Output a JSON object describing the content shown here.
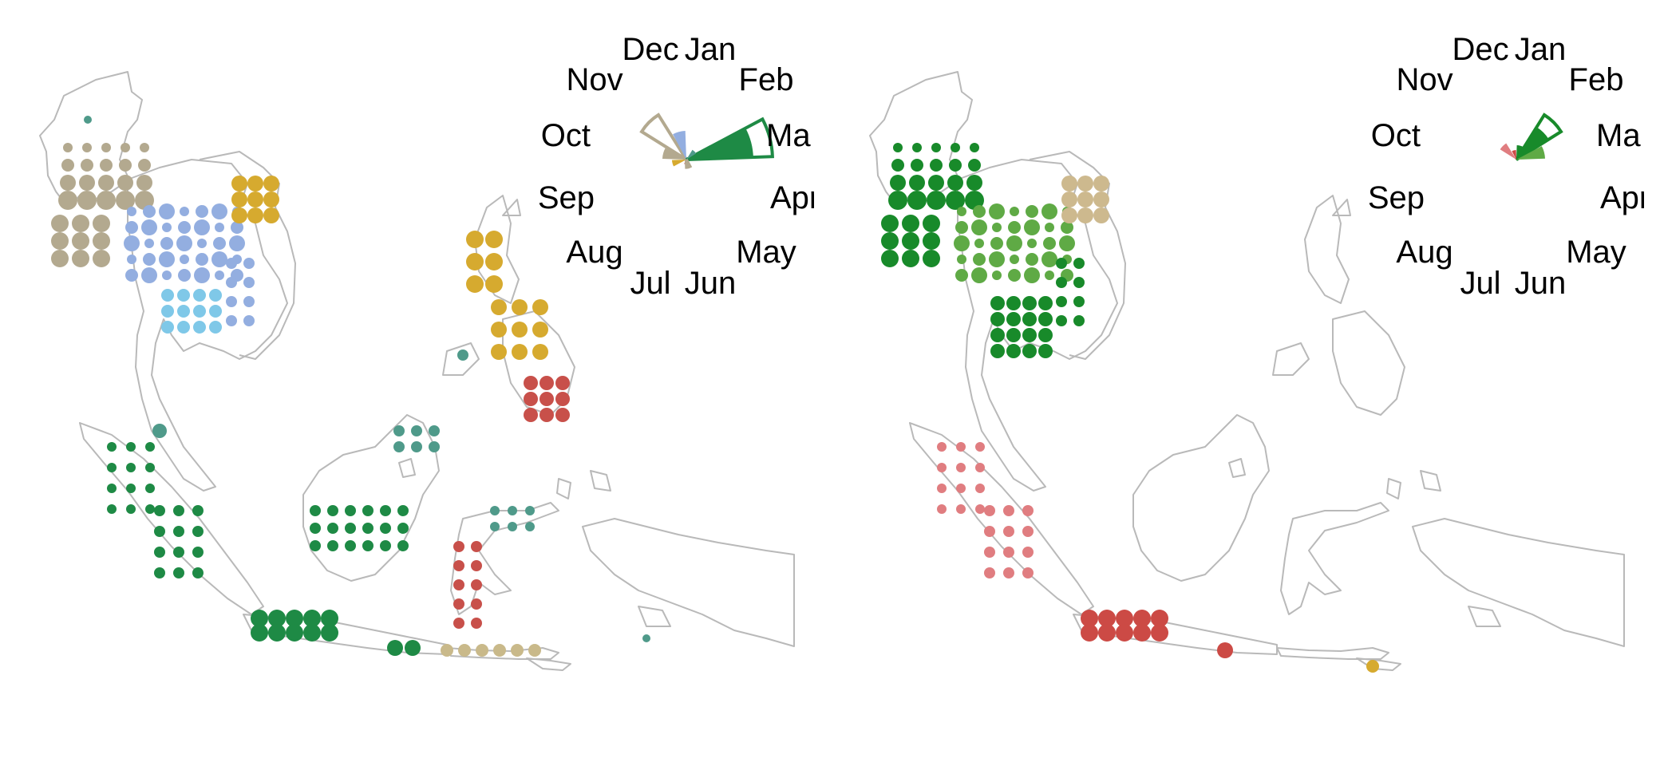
{
  "colors": {
    "land_outline": "#b9b9b9",
    "left_palette": {
      "grey_tan": "#b3a98f",
      "periwinkle": "#93aee0",
      "sky_blue": "#7fc8e8",
      "gold": "#d6aa2f",
      "teal": "#4f9a8a",
      "dark_green": "#1e8a45",
      "red": "#c8504a",
      "light_tan": "#c9b98a"
    },
    "right_palette": {
      "forest_green": "#188a2a",
      "medium_green": "#5faa45",
      "light_tan": "#cdb98e",
      "pink": "#e07d80",
      "red": "#cc4a45",
      "gold": "#d6aa2f"
    }
  },
  "map_data": {
    "type": "dot-map with circular month rose inset",
    "region_shown": "Southeast Asia",
    "months_order": [
      "Jan",
      "Feb",
      "Mar",
      "Apr",
      "May",
      "Jun",
      "Jul",
      "Aug",
      "Sep",
      "Oct",
      "Nov",
      "Dec"
    ]
  },
  "panels": [
    {
      "name": "left",
      "rose_labels": {
        "jan": "Jan",
        "feb": "Feb",
        "mar": "Ma",
        "apr": "Apr",
        "may": "May",
        "jun": "Jun",
        "jul": "Jul",
        "aug": "Aug",
        "sep": "Sep",
        "oct": "Oct",
        "nov": "Nov",
        "dec": "Dec"
      },
      "rose_wedges": [
        {
          "month_center": "Nov",
          "color": "#b3a98f",
          "value": 0.55,
          "style": "outline"
        },
        {
          "month_center": "Dec",
          "color": "#93aee0",
          "value": 0.3,
          "style": "filled"
        },
        {
          "month_center": "Oct",
          "color": "#b3a98f",
          "value": 0.25,
          "style": "filled"
        },
        {
          "month_center": "Sep",
          "color": "#d6aa2f",
          "value": 0.15,
          "style": "filled"
        },
        {
          "month_center": "Mar",
          "color": "#1e8a45",
          "value": 0.9,
          "style": "outline"
        },
        {
          "month_center": "Mar",
          "color": "#1e8a45",
          "value": 0.7,
          "style": "filled"
        },
        {
          "month_center": "Feb",
          "color": "#4f9a8a",
          "value": 0.12,
          "style": "filled"
        },
        {
          "month_center": "Jul",
          "color": "#c8504a",
          "value": 0.05,
          "style": "filled"
        },
        {
          "month_center": "Jun",
          "color": "#b3a98f",
          "value": 0.08,
          "style": "outline"
        }
      ]
    },
    {
      "name": "right",
      "rose_labels": {
        "jan": "Jan",
        "feb": "Feb",
        "mar": "Ma",
        "apr": "Apr",
        "may": "May",
        "jun": "Jun",
        "jul": "Jul",
        "aug": "Aug",
        "sep": "Sep",
        "oct": "Oct",
        "nov": "Nov",
        "dec": "Dec"
      },
      "rose_wedges": [
        {
          "month_center": "Feb",
          "color": "#188a2a",
          "value": 0.55,
          "style": "outline"
        },
        {
          "month_center": "Feb",
          "color": "#188a2a",
          "value": 0.4,
          "style": "filled"
        },
        {
          "month_center": "Mar",
          "color": "#5faa45",
          "value": 0.3,
          "style": "filled"
        },
        {
          "month_center": "Jan",
          "color": "#188a2a",
          "value": 0.15,
          "style": "filled"
        },
        {
          "month_center": "Nov",
          "color": "#e07d80",
          "value": 0.2,
          "style": "filled"
        },
        {
          "month_center": "Dec",
          "color": "#cc4a45",
          "value": 0.1,
          "style": "filled"
        }
      ]
    }
  ]
}
